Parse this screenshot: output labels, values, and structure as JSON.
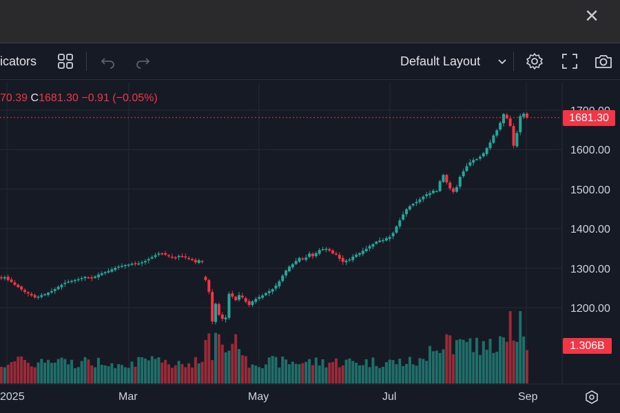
{
  "window": {
    "close_label": "×"
  },
  "toolbar": {
    "indicators_label": "icators",
    "layout_label": "Default Layout"
  },
  "legend": {
    "open_fragment": "70.39",
    "close_letter": "C",
    "close_value": "1681.30",
    "change": "−0.91",
    "change_pct": "(−0.05%)"
  },
  "price_axis": {
    "ticks": [
      "1700.00",
      "1600.00",
      "1500.00",
      "1400.00",
      "1300.00",
      "1200.00"
    ],
    "last_price_tag": "1681.30",
    "volume_tag": "1.306B"
  },
  "time_axis": {
    "labels": [
      "2025",
      "Mar",
      "May",
      "Jul",
      "Sep"
    ]
  },
  "colors": {
    "up": "#26a69a",
    "down": "#f23645",
    "background": "#161a24",
    "grid": "#252a36"
  },
  "chart_data": {
    "type": "candlestick",
    "ylim": [
      1140,
      1730
    ],
    "last_price": 1681.3,
    "closes": [
      1275,
      1277,
      1270,
      1265,
      1258,
      1252,
      1246,
      1240,
      1236,
      1231,
      1226,
      1228,
      1232,
      1234,
      1238,
      1242,
      1247,
      1253,
      1258,
      1263,
      1266,
      1268,
      1270,
      1272,
      1275,
      1278,
      1276,
      1274,
      1279,
      1284,
      1287,
      1290,
      1293,
      1297,
      1301,
      1304,
      1306,
      1308,
      1309,
      1311,
      1310,
      1312,
      1315,
      1318,
      1323,
      1328,
      1333,
      1337,
      1336,
      1334,
      1331,
      1328,
      1327,
      1331,
      1330,
      1327,
      1323,
      1320,
      1315,
      1320,
      1318,
      1270,
      1240,
      1165,
      1210,
      1182,
      1172,
      1175,
      1235,
      1228,
      1219,
      1232,
      1226,
      1215,
      1207,
      1216,
      1222,
      1227,
      1231,
      1237,
      1242,
      1247,
      1256,
      1267,
      1281,
      1294,
      1304,
      1310,
      1318,
      1326,
      1322,
      1327,
      1337,
      1330,
      1338,
      1346,
      1348,
      1349,
      1344,
      1337,
      1334,
      1324,
      1316,
      1319,
      1322,
      1329,
      1334,
      1338,
      1344,
      1349,
      1356,
      1361,
      1367,
      1370,
      1371,
      1376,
      1379,
      1389,
      1406,
      1421,
      1436,
      1449,
      1457,
      1463,
      1468,
      1474,
      1481,
      1487,
      1490,
      1496,
      1495,
      1520,
      1536,
      1517,
      1502,
      1493,
      1505,
      1531,
      1545,
      1558,
      1568,
      1574,
      1576,
      1582,
      1591,
      1604,
      1618,
      1636,
      1649,
      1668,
      1690,
      1679,
      1660,
      1610,
      1642,
      1685,
      1691,
      1681.3
    ]
  }
}
